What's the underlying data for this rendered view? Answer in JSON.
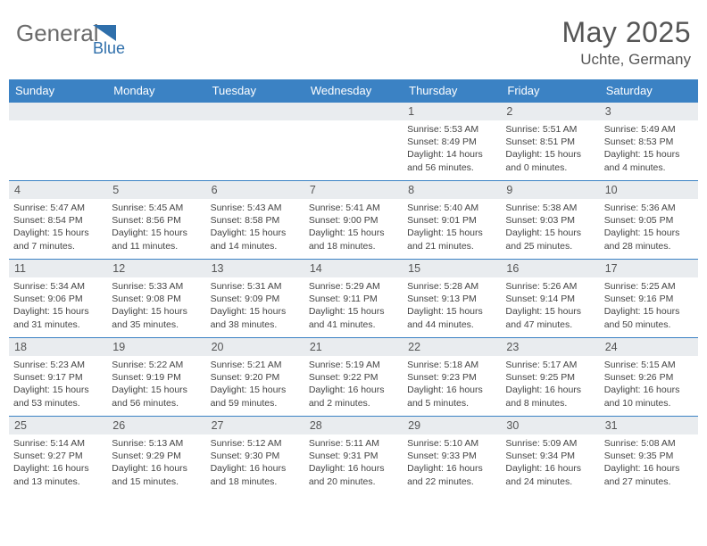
{
  "brand": {
    "word1": "General",
    "word2": "Blue",
    "word1_color": "#6b6b6b",
    "word2_color": "#2f6fab"
  },
  "title": "May 2025",
  "location": "Uchte, Germany",
  "accent_color": "#3b82c4",
  "daynum_bg": "#e9ecef",
  "dayNames": [
    "Sunday",
    "Monday",
    "Tuesday",
    "Wednesday",
    "Thursday",
    "Friday",
    "Saturday"
  ],
  "weeks": [
    [
      {
        "n": "",
        "lines": []
      },
      {
        "n": "",
        "lines": []
      },
      {
        "n": "",
        "lines": []
      },
      {
        "n": "",
        "lines": []
      },
      {
        "n": "1",
        "lines": [
          "Sunrise: 5:53 AM",
          "Sunset: 8:49 PM",
          "Daylight: 14 hours and 56 minutes."
        ]
      },
      {
        "n": "2",
        "lines": [
          "Sunrise: 5:51 AM",
          "Sunset: 8:51 PM",
          "Daylight: 15 hours and 0 minutes."
        ]
      },
      {
        "n": "3",
        "lines": [
          "Sunrise: 5:49 AM",
          "Sunset: 8:53 PM",
          "Daylight: 15 hours and 4 minutes."
        ]
      }
    ],
    [
      {
        "n": "4",
        "lines": [
          "Sunrise: 5:47 AM",
          "Sunset: 8:54 PM",
          "Daylight: 15 hours and 7 minutes."
        ]
      },
      {
        "n": "5",
        "lines": [
          "Sunrise: 5:45 AM",
          "Sunset: 8:56 PM",
          "Daylight: 15 hours and 11 minutes."
        ]
      },
      {
        "n": "6",
        "lines": [
          "Sunrise: 5:43 AM",
          "Sunset: 8:58 PM",
          "Daylight: 15 hours and 14 minutes."
        ]
      },
      {
        "n": "7",
        "lines": [
          "Sunrise: 5:41 AM",
          "Sunset: 9:00 PM",
          "Daylight: 15 hours and 18 minutes."
        ]
      },
      {
        "n": "8",
        "lines": [
          "Sunrise: 5:40 AM",
          "Sunset: 9:01 PM",
          "Daylight: 15 hours and 21 minutes."
        ]
      },
      {
        "n": "9",
        "lines": [
          "Sunrise: 5:38 AM",
          "Sunset: 9:03 PM",
          "Daylight: 15 hours and 25 minutes."
        ]
      },
      {
        "n": "10",
        "lines": [
          "Sunrise: 5:36 AM",
          "Sunset: 9:05 PM",
          "Daylight: 15 hours and 28 minutes."
        ]
      }
    ],
    [
      {
        "n": "11",
        "lines": [
          "Sunrise: 5:34 AM",
          "Sunset: 9:06 PM",
          "Daylight: 15 hours and 31 minutes."
        ]
      },
      {
        "n": "12",
        "lines": [
          "Sunrise: 5:33 AM",
          "Sunset: 9:08 PM",
          "Daylight: 15 hours and 35 minutes."
        ]
      },
      {
        "n": "13",
        "lines": [
          "Sunrise: 5:31 AM",
          "Sunset: 9:09 PM",
          "Daylight: 15 hours and 38 minutes."
        ]
      },
      {
        "n": "14",
        "lines": [
          "Sunrise: 5:29 AM",
          "Sunset: 9:11 PM",
          "Daylight: 15 hours and 41 minutes."
        ]
      },
      {
        "n": "15",
        "lines": [
          "Sunrise: 5:28 AM",
          "Sunset: 9:13 PM",
          "Daylight: 15 hours and 44 minutes."
        ]
      },
      {
        "n": "16",
        "lines": [
          "Sunrise: 5:26 AM",
          "Sunset: 9:14 PM",
          "Daylight: 15 hours and 47 minutes."
        ]
      },
      {
        "n": "17",
        "lines": [
          "Sunrise: 5:25 AM",
          "Sunset: 9:16 PM",
          "Daylight: 15 hours and 50 minutes."
        ]
      }
    ],
    [
      {
        "n": "18",
        "lines": [
          "Sunrise: 5:23 AM",
          "Sunset: 9:17 PM",
          "Daylight: 15 hours and 53 minutes."
        ]
      },
      {
        "n": "19",
        "lines": [
          "Sunrise: 5:22 AM",
          "Sunset: 9:19 PM",
          "Daylight: 15 hours and 56 minutes."
        ]
      },
      {
        "n": "20",
        "lines": [
          "Sunrise: 5:21 AM",
          "Sunset: 9:20 PM",
          "Daylight: 15 hours and 59 minutes."
        ]
      },
      {
        "n": "21",
        "lines": [
          "Sunrise: 5:19 AM",
          "Sunset: 9:22 PM",
          "Daylight: 16 hours and 2 minutes."
        ]
      },
      {
        "n": "22",
        "lines": [
          "Sunrise: 5:18 AM",
          "Sunset: 9:23 PM",
          "Daylight: 16 hours and 5 minutes."
        ]
      },
      {
        "n": "23",
        "lines": [
          "Sunrise: 5:17 AM",
          "Sunset: 9:25 PM",
          "Daylight: 16 hours and 8 minutes."
        ]
      },
      {
        "n": "24",
        "lines": [
          "Sunrise: 5:15 AM",
          "Sunset: 9:26 PM",
          "Daylight: 16 hours and 10 minutes."
        ]
      }
    ],
    [
      {
        "n": "25",
        "lines": [
          "Sunrise: 5:14 AM",
          "Sunset: 9:27 PM",
          "Daylight: 16 hours and 13 minutes."
        ]
      },
      {
        "n": "26",
        "lines": [
          "Sunrise: 5:13 AM",
          "Sunset: 9:29 PM",
          "Daylight: 16 hours and 15 minutes."
        ]
      },
      {
        "n": "27",
        "lines": [
          "Sunrise: 5:12 AM",
          "Sunset: 9:30 PM",
          "Daylight: 16 hours and 18 minutes."
        ]
      },
      {
        "n": "28",
        "lines": [
          "Sunrise: 5:11 AM",
          "Sunset: 9:31 PM",
          "Daylight: 16 hours and 20 minutes."
        ]
      },
      {
        "n": "29",
        "lines": [
          "Sunrise: 5:10 AM",
          "Sunset: 9:33 PM",
          "Daylight: 16 hours and 22 minutes."
        ]
      },
      {
        "n": "30",
        "lines": [
          "Sunrise: 5:09 AM",
          "Sunset: 9:34 PM",
          "Daylight: 16 hours and 24 minutes."
        ]
      },
      {
        "n": "31",
        "lines": [
          "Sunrise: 5:08 AM",
          "Sunset: 9:35 PM",
          "Daylight: 16 hours and 27 minutes."
        ]
      }
    ]
  ]
}
